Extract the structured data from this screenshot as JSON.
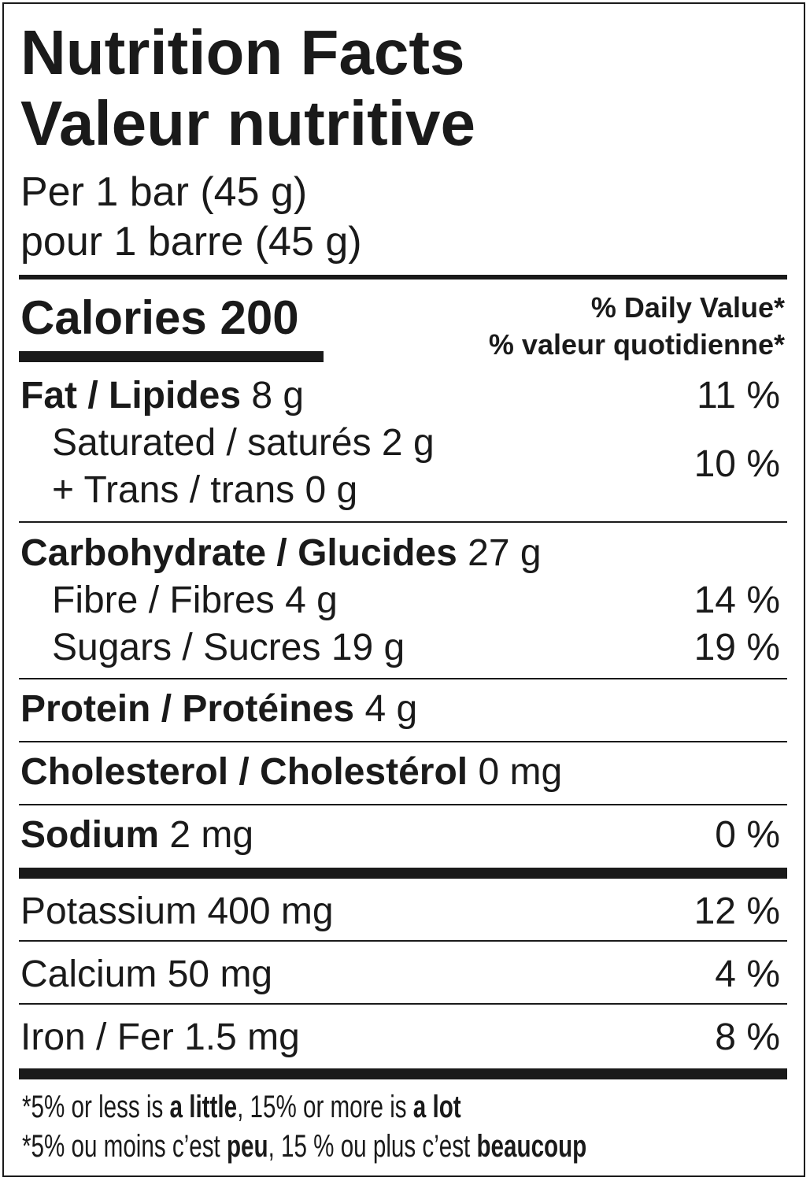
{
  "title_en": "Nutrition Facts",
  "title_fr": "Valeur nutritive",
  "serving_en": "Per 1 bar (45 g)",
  "serving_fr": "pour 1 barre (45 g)",
  "calories": {
    "label": "Calories",
    "value": "200"
  },
  "dv_header_en": "% Daily Value*",
  "dv_header_fr": "% valeur quotidienne*",
  "nutrients": {
    "fat": {
      "label": "Fat / Lipides",
      "amount": "8 g",
      "dv": "11 %"
    },
    "saturated": {
      "label": "Saturated / saturés",
      "amount": "2 g"
    },
    "trans": {
      "label": "+ Trans / trans",
      "amount": "0 g"
    },
    "sat_trans_dv": "10 %",
    "carbohydrate": {
      "label": "Carbohydrate / Glucides",
      "amount": "27 g"
    },
    "fibre": {
      "label": "Fibre / Fibres",
      "amount": "4 g",
      "dv": "14 %"
    },
    "sugars": {
      "label": "Sugars / Sucres",
      "amount": "19 g",
      "dv": "19 %"
    },
    "protein": {
      "label": "Protein / Protéines",
      "amount": "4 g"
    },
    "cholesterol": {
      "label": "Cholesterol / Cholestérol",
      "amount": "0 mg"
    },
    "sodium": {
      "label": "Sodium",
      "amount": "2 mg",
      "dv": "0 %"
    },
    "potassium": {
      "label": "Potassium",
      "amount": "400 mg",
      "dv": "12 %"
    },
    "calcium": {
      "label": "Calcium",
      "amount": "50 mg",
      "dv": "4 %"
    },
    "iron": {
      "label": "Iron / Fer",
      "amount": "1.5 mg",
      "dv": "8 %"
    }
  },
  "footnote_en": {
    "a": "*5% or less is ",
    "b": "a little",
    "c": ", 15% or more is ",
    "d": "a lot"
  },
  "footnote_fr": {
    "a": "*5% ou moins c’est ",
    "b": "peu",
    "c": ", 15 % ou plus c’est ",
    "d": "beaucoup"
  }
}
